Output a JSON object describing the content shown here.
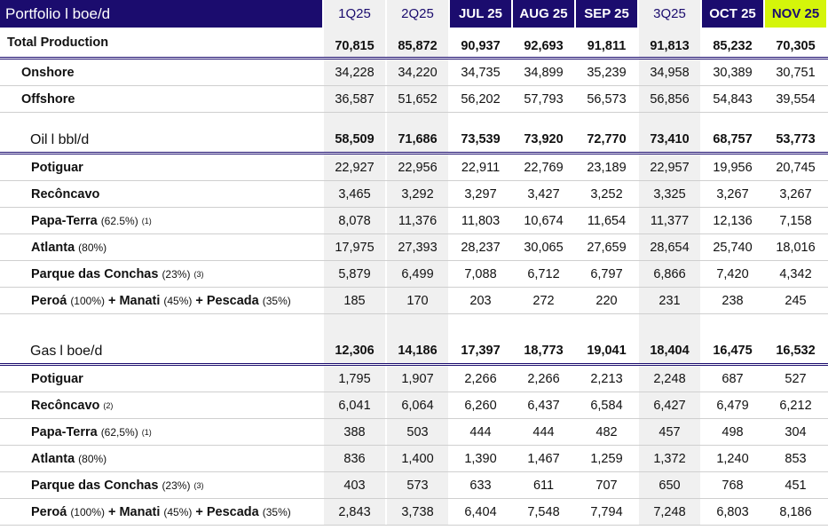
{
  "header": {
    "title": "Portfolio l boe/d",
    "columns": [
      "1Q25",
      "2Q25",
      "JUL 25",
      "AUG 25",
      "SEP 25",
      "3Q25",
      "OCT 25",
      "NOV 25"
    ],
    "column_types": [
      "q",
      "q",
      "m",
      "m",
      "m",
      "q",
      "m",
      "hl"
    ]
  },
  "colors": {
    "navy": "#1b0c6e",
    "highlight": "#d4f50a",
    "shade": "#f0f0f0"
  },
  "rows": [
    {
      "type": "total",
      "name": "Total Production",
      "values": [
        "70,815",
        "85,872",
        "90,937",
        "92,693",
        "91,811",
        "91,813",
        "85,232",
        "70,305"
      ]
    },
    {
      "type": "sub",
      "name": "Onshore",
      "values": [
        "34,228",
        "34,220",
        "34,735",
        "34,899",
        "35,239",
        "34,958",
        "30,389",
        "30,751"
      ]
    },
    {
      "type": "sub",
      "name": "Offshore",
      "values": [
        "36,587",
        "51,652",
        "56,202",
        "57,793",
        "56,573",
        "56,856",
        "54,843",
        "39,554"
      ]
    },
    {
      "type": "sec oil",
      "name": "Oil",
      "unit": "l bbl/d",
      "values": [
        "58,509",
        "71,686",
        "73,539",
        "73,920",
        "72,770",
        "73,410",
        "68,757",
        "53,773"
      ]
    },
    {
      "type": "item",
      "name": "Potiguar",
      "values": [
        "22,927",
        "22,956",
        "22,911",
        "22,769",
        "23,189",
        "22,957",
        "19,956",
        "20,745"
      ]
    },
    {
      "type": "item",
      "name": "Recôncavo",
      "values": [
        "3,465",
        "3,292",
        "3,297",
        "3,427",
        "3,252",
        "3,325",
        "3,267",
        "3,267"
      ]
    },
    {
      "type": "item",
      "name": "Papa-Terra",
      "note": "(62.5%)",
      "sup": "(1)",
      "values": [
        "8,078",
        "11,376",
        "11,803",
        "10,674",
        "11,654",
        "11,377",
        "12,136",
        "7,158"
      ]
    },
    {
      "type": "item",
      "name": "Atlanta",
      "note": "(80%)",
      "values": [
        "17,975",
        "27,393",
        "28,237",
        "30,065",
        "27,659",
        "28,654",
        "25,740",
        "18,016"
      ]
    },
    {
      "type": "item",
      "name": "Parque das Conchas",
      "note": "(23%)",
      "sup": "(3)",
      "values": [
        "5,879",
        "6,499",
        "7,088",
        "6,712",
        "6,797",
        "6,866",
        "7,420",
        "4,342"
      ]
    },
    {
      "type": "item",
      "name": "Peroá",
      "note": "(100%)",
      "name2": "Manati",
      "note2": "(45%)",
      "name3": "Pescada",
      "note3": "(35%)",
      "plus": "+",
      "values": [
        "185",
        "170",
        "203",
        "272",
        "220",
        "231",
        "238",
        "245"
      ]
    },
    {
      "type": "blank",
      "values": [
        "",
        "",
        "",
        "",
        "",
        "",
        "",
        ""
      ]
    },
    {
      "type": "sec gas",
      "name": "Gas",
      "unit": "l boe/d",
      "values": [
        "12,306",
        "14,186",
        "17,397",
        "18,773",
        "19,041",
        "18,404",
        "16,475",
        "16,532"
      ]
    },
    {
      "type": "item",
      "name": "Potiguar",
      "values": [
        "1,795",
        "1,907",
        "2,266",
        "2,266",
        "2,213",
        "2,248",
        "687",
        "527"
      ]
    },
    {
      "type": "item",
      "name": "Recôncavo",
      "sup": "(2)",
      "values": [
        "6,041",
        "6,064",
        "6,260",
        "6,437",
        "6,584",
        "6,427",
        "6,479",
        "6,212"
      ]
    },
    {
      "type": "item",
      "name": "Papa-Terra",
      "note": "(62,5%)",
      "sup": "(1)",
      "values": [
        "388",
        "503",
        "444",
        "444",
        "482",
        "457",
        "498",
        "304"
      ]
    },
    {
      "type": "item",
      "name": "Atlanta",
      "note": "(80%)",
      "values": [
        "836",
        "1,400",
        "1,390",
        "1,467",
        "1,259",
        "1,372",
        "1,240",
        "853"
      ]
    },
    {
      "type": "item",
      "name": "Parque das Conchas",
      "note": "(23%)",
      "sup": "(3)",
      "values": [
        "403",
        "573",
        "633",
        "611",
        "707",
        "650",
        "768",
        "451"
      ]
    },
    {
      "type": "item",
      "name": "Peroá",
      "note": "(100%)",
      "name2": "Manati",
      "note2": "(45%)",
      "name3": "Pescada",
      "note3": "(35%)",
      "plus": "+",
      "values": [
        "2,843",
        "3,738",
        "6,404",
        "7,548",
        "7,794",
        "7,248",
        "6,803",
        "8,186"
      ]
    }
  ]
}
